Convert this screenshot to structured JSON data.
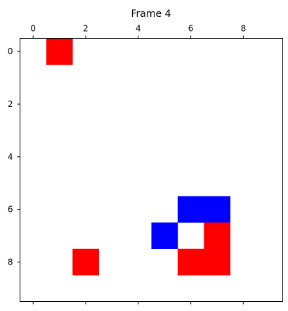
{
  "chart_data": {
    "type": "heatmap",
    "title": "Frame 4",
    "xlabel": "",
    "ylabel": "",
    "grid_size": 10,
    "xlim": [
      -0.5,
      9.5
    ],
    "ylim": [
      9.5,
      -0.5
    ],
    "x_ticks": [
      0,
      2,
      4,
      6,
      8
    ],
    "y_ticks": [
      0,
      2,
      4,
      6,
      8
    ],
    "x_axis_position": "top",
    "grid": false,
    "colors": {
      "red": "#ff0000",
      "blue": "#0000ff",
      "background": "#ffffff"
    },
    "cells": [
      {
        "row": 0,
        "col": 1,
        "color": "red"
      },
      {
        "row": 6,
        "col": 6,
        "color": "blue"
      },
      {
        "row": 6,
        "col": 7,
        "color": "blue"
      },
      {
        "row": 7,
        "col": 5,
        "color": "blue"
      },
      {
        "row": 7,
        "col": 7,
        "color": "red"
      },
      {
        "row": 8,
        "col": 2,
        "color": "red"
      },
      {
        "row": 8,
        "col": 6,
        "color": "red"
      },
      {
        "row": 8,
        "col": 7,
        "color": "red"
      }
    ]
  }
}
